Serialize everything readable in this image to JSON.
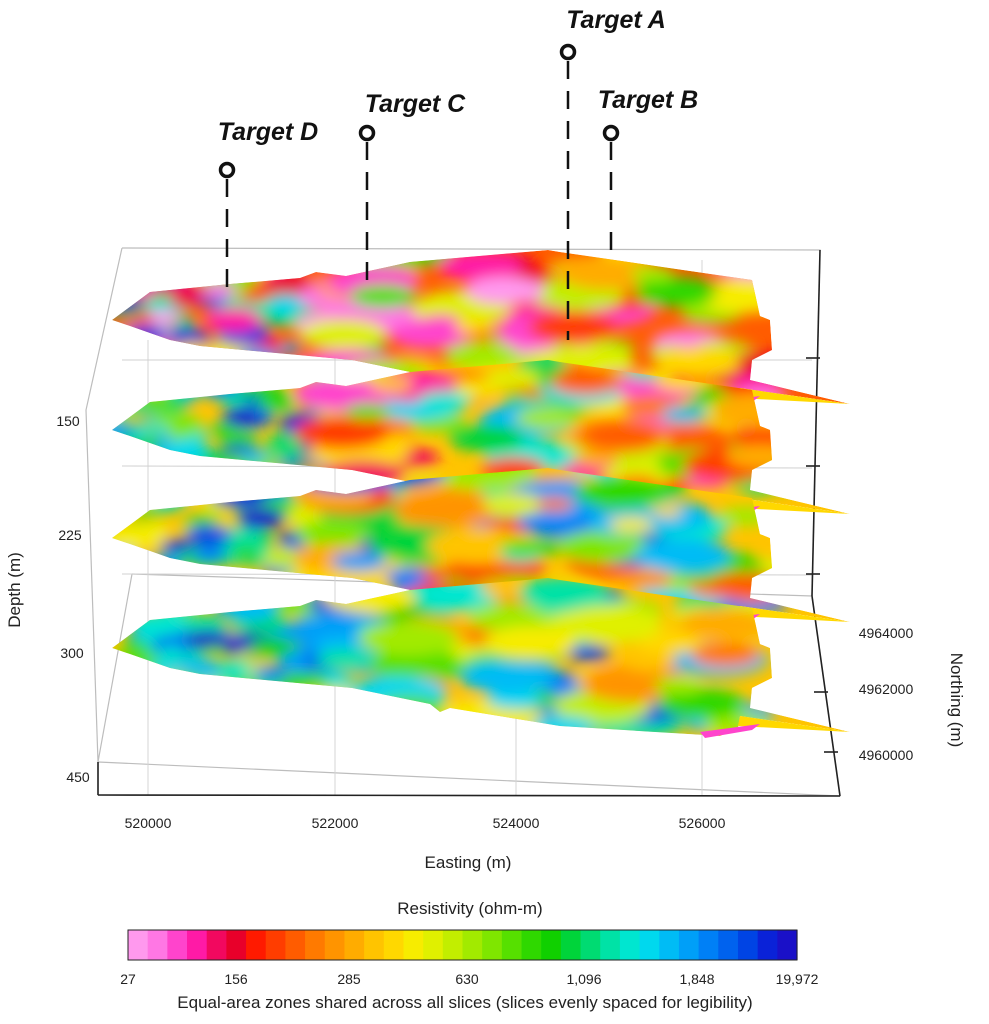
{
  "chart_data": {
    "type": "heatmap",
    "subtype": "3d-stacked-depth-slices",
    "xlabel": "Easting (m)",
    "ylabel": "Northing (m)",
    "zlabel": "Depth (m)",
    "x_ticks": [
      520000,
      522000,
      524000,
      526000
    ],
    "y_ticks": [
      4960000,
      4962000,
      4964000
    ],
    "z_ticks": [
      150,
      225,
      300,
      450
    ],
    "slice_depths": [
      150,
      225,
      300,
      450
    ],
    "targets": [
      {
        "name": "Target A"
      },
      {
        "name": "Target B"
      },
      {
        "name": "Target C"
      },
      {
        "name": "Target D"
      }
    ],
    "colorbar": {
      "title": "Resistivity (ohm-m)",
      "tick_labels": [
        "27",
        "156",
        "285",
        "630",
        "1,096",
        "1,848",
        "19,972"
      ],
      "caption": "Equal-area zones shared across all slices (slices evenly spaced for legibility)",
      "colors": [
        "#ff99ee",
        "#ff77e4",
        "#ff44cc",
        "#ff1aa6",
        "#f2085f",
        "#e8002a",
        "#ff1a00",
        "#ff3d00",
        "#ff5c00",
        "#ff7a00",
        "#ff9400",
        "#ffac00",
        "#ffc400",
        "#ffd800",
        "#f7ec00",
        "#e0f000",
        "#c2ee00",
        "#a2ea00",
        "#7fe600",
        "#56e000",
        "#2fd800",
        "#10d000",
        "#00d43a",
        "#00db72",
        "#00e2a6",
        "#00e6d0",
        "#00d8ee",
        "#00bcf5",
        "#009ff8",
        "#0080f6",
        "#0062ee",
        "#0044e4",
        "#0a22d8",
        "#1a10c8"
      ]
    }
  }
}
